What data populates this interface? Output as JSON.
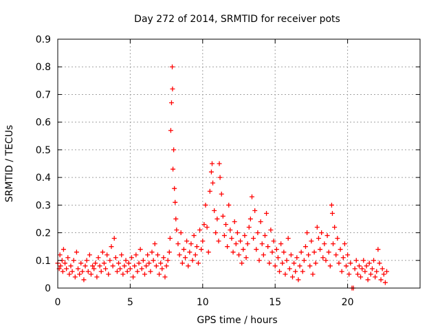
{
  "chart_data": {
    "type": "scatter",
    "title": "Day 272 of 2014, SRMTID for receiver pots",
    "xlabel": "GPS time / hours",
    "ylabel": "SRMTID / TECUs",
    "xlim": [
      0,
      25
    ],
    "ylim": [
      0,
      0.9
    ],
    "x_ticks": [
      0,
      5,
      10,
      15,
      20
    ],
    "x_tick_labels": [
      "0",
      "5",
      "10",
      "15",
      "20"
    ],
    "y_ticks": [
      0,
      0.1,
      0.2,
      0.3,
      0.4,
      0.5,
      0.6,
      0.7,
      0.8,
      0.9
    ],
    "y_tick_labels": [
      "0",
      "0.1",
      "0.2",
      "0.3",
      "0.4",
      "0.5",
      "0.6",
      "0.7",
      "0.8",
      "0.9"
    ],
    "grid": true,
    "marker": "+",
    "color": "#ff0000",
    "series": [
      {
        "name": "SRMTID",
        "points": [
          [
            0.0,
            0.09
          ],
          [
            0.1,
            0.07
          ],
          [
            0.15,
            0.12
          ],
          [
            0.2,
            0.08
          ],
          [
            0.3,
            0.1
          ],
          [
            0.35,
            0.06
          ],
          [
            0.4,
            0.14
          ],
          [
            0.5,
            0.09
          ],
          [
            0.6,
            0.07
          ],
          [
            0.7,
            0.11
          ],
          [
            0.8,
            0.05
          ],
          [
            0.9,
            0.08
          ],
          [
            1.0,
            0.06
          ],
          [
            1.1,
            0.1
          ],
          [
            1.2,
            0.04
          ],
          [
            1.3,
            0.13
          ],
          [
            1.4,
            0.07
          ],
          [
            1.5,
            0.05
          ],
          [
            1.6,
            0.09
          ],
          [
            1.7,
            0.06
          ],
          [
            1.8,
            0.03
          ],
          [
            1.9,
            0.08
          ],
          [
            2.0,
            0.1
          ],
          [
            2.1,
            0.06
          ],
          [
            2.2,
            0.12
          ],
          [
            2.3,
            0.05
          ],
          [
            2.4,
            0.08
          ],
          [
            2.5,
            0.07
          ],
          [
            2.6,
            0.09
          ],
          [
            2.7,
            0.04
          ],
          [
            2.8,
            0.11
          ],
          [
            2.9,
            0.08
          ],
          [
            3.0,
            0.06
          ],
          [
            3.1,
            0.13
          ],
          [
            3.2,
            0.09
          ],
          [
            3.3,
            0.07
          ],
          [
            3.4,
            0.12
          ],
          [
            3.5,
            0.05
          ],
          [
            3.6,
            0.1
          ],
          [
            3.7,
            0.15
          ],
          [
            3.8,
            0.08
          ],
          [
            3.9,
            0.18
          ],
          [
            4.0,
            0.11
          ],
          [
            4.1,
            0.06
          ],
          [
            4.2,
            0.09
          ],
          [
            4.3,
            0.07
          ],
          [
            4.4,
            0.12
          ],
          [
            4.5,
            0.05
          ],
          [
            4.6,
            0.08
          ],
          [
            4.7,
            0.1
          ],
          [
            4.8,
            0.06
          ],
          [
            4.9,
            0.09
          ],
          [
            5.0,
            0.07
          ],
          [
            5.1,
            0.11
          ],
          [
            5.2,
            0.04
          ],
          [
            5.3,
            0.08
          ],
          [
            5.4,
            0.12
          ],
          [
            5.5,
            0.06
          ],
          [
            5.6,
            0.09
          ],
          [
            5.7,
            0.14
          ],
          [
            5.8,
            0.07
          ],
          [
            5.9,
            0.1
          ],
          [
            6.0,
            0.05
          ],
          [
            6.1,
            0.08
          ],
          [
            6.2,
            0.12
          ],
          [
            6.3,
            0.09
          ],
          [
            6.4,
            0.06
          ],
          [
            6.5,
            0.13
          ],
          [
            6.6,
            0.1
          ],
          [
            6.7,
            0.16
          ],
          [
            6.8,
            0.08
          ],
          [
            6.9,
            0.12
          ],
          [
            7.0,
            0.05
          ],
          [
            7.1,
            0.09
          ],
          [
            7.2,
            0.07
          ],
          [
            7.3,
            0.11
          ],
          [
            7.4,
            0.04
          ],
          [
            7.5,
            0.08
          ],
          [
            7.6,
            0.1
          ],
          [
            7.7,
            0.13
          ],
          [
            7.75,
            0.18
          ],
          [
            7.8,
            0.57
          ],
          [
            7.85,
            0.67
          ],
          [
            7.9,
            0.8
          ],
          [
            7.92,
            0.72
          ],
          [
            7.95,
            0.43
          ],
          [
            8.0,
            0.5
          ],
          [
            8.05,
            0.36
          ],
          [
            8.1,
            0.31
          ],
          [
            8.15,
            0.25
          ],
          [
            8.2,
            0.21
          ],
          [
            8.3,
            0.16
          ],
          [
            8.4,
            0.12
          ],
          [
            8.5,
            0.2
          ],
          [
            8.6,
            0.09
          ],
          [
            8.7,
            0.14
          ],
          [
            8.8,
            0.11
          ],
          [
            8.9,
            0.17
          ],
          [
            9.0,
            0.08
          ],
          [
            9.1,
            0.13
          ],
          [
            9.2,
            0.16
          ],
          [
            9.3,
            0.1
          ],
          [
            9.4,
            0.19
          ],
          [
            9.5,
            0.12
          ],
          [
            9.6,
            0.15
          ],
          [
            9.7,
            0.09
          ],
          [
            9.8,
            0.21
          ],
          [
            9.9,
            0.14
          ],
          [
            10.0,
            0.17
          ],
          [
            10.1,
            0.23
          ],
          [
            10.2,
            0.3
          ],
          [
            10.3,
            0.22
          ],
          [
            10.4,
            0.13
          ],
          [
            10.5,
            0.35
          ],
          [
            10.6,
            0.42
          ],
          [
            10.65,
            0.45
          ],
          [
            10.7,
            0.38
          ],
          [
            10.8,
            0.28
          ],
          [
            10.9,
            0.2
          ],
          [
            11.0,
            0.25
          ],
          [
            11.1,
            0.17
          ],
          [
            11.15,
            0.45
          ],
          [
            11.2,
            0.4
          ],
          [
            11.3,
            0.34
          ],
          [
            11.4,
            0.26
          ],
          [
            11.5,
            0.19
          ],
          [
            11.6,
            0.23
          ],
          [
            11.7,
            0.15
          ],
          [
            11.8,
            0.3
          ],
          [
            11.9,
            0.21
          ],
          [
            12.0,
            0.18
          ],
          [
            12.1,
            0.13
          ],
          [
            12.2,
            0.24
          ],
          [
            12.3,
            0.16
          ],
          [
            12.4,
            0.2
          ],
          [
            12.5,
            0.12
          ],
          [
            12.6,
            0.17
          ],
          [
            12.7,
            0.09
          ],
          [
            12.8,
            0.14
          ],
          [
            12.9,
            0.19
          ],
          [
            13.0,
            0.11
          ],
          [
            13.1,
            0.16
          ],
          [
            13.2,
            0.22
          ],
          [
            13.3,
            0.25
          ],
          [
            13.4,
            0.33
          ],
          [
            13.5,
            0.18
          ],
          [
            13.6,
            0.28
          ],
          [
            13.7,
            0.14
          ],
          [
            13.8,
            0.2
          ],
          [
            13.9,
            0.1
          ],
          [
            14.0,
            0.24
          ],
          [
            14.1,
            0.16
          ],
          [
            14.2,
            0.12
          ],
          [
            14.3,
            0.19
          ],
          [
            14.4,
            0.27
          ],
          [
            14.5,
            0.15
          ],
          [
            14.6,
            0.09
          ],
          [
            14.7,
            0.21
          ],
          [
            14.8,
            0.13
          ],
          [
            14.9,
            0.17
          ],
          [
            15.0,
            0.08
          ],
          [
            15.1,
            0.14
          ],
          [
            15.2,
            0.11
          ],
          [
            15.3,
            0.06
          ],
          [
            15.4,
            0.16
          ],
          [
            15.5,
            0.09
          ],
          [
            15.6,
            0.13
          ],
          [
            15.7,
            0.05
          ],
          [
            15.8,
            0.1
          ],
          [
            15.9,
            0.18
          ],
          [
            16.0,
            0.07
          ],
          [
            16.1,
            0.12
          ],
          [
            16.2,
            0.04
          ],
          [
            16.3,
            0.09
          ],
          [
            16.4,
            0.06
          ],
          [
            16.5,
            0.11
          ],
          [
            16.6,
            0.03
          ],
          [
            16.7,
            0.08
          ],
          [
            16.8,
            0.13
          ],
          [
            16.9,
            0.06
          ],
          [
            17.0,
            0.1
          ],
          [
            17.1,
            0.15
          ],
          [
            17.2,
            0.2
          ],
          [
            17.3,
            0.12
          ],
          [
            17.4,
            0.08
          ],
          [
            17.5,
            0.17
          ],
          [
            17.6,
            0.05
          ],
          [
            17.7,
            0.13
          ],
          [
            17.8,
            0.09
          ],
          [
            17.9,
            0.22
          ],
          [
            18.0,
            0.18
          ],
          [
            18.1,
            0.14
          ],
          [
            18.2,
            0.2
          ],
          [
            18.3,
            0.11
          ],
          [
            18.4,
            0.16
          ],
          [
            18.5,
            0.1
          ],
          [
            18.6,
            0.19
          ],
          [
            18.7,
            0.13
          ],
          [
            18.8,
            0.08
          ],
          [
            18.9,
            0.3
          ],
          [
            18.95,
            0.27
          ],
          [
            19.0,
            0.16
          ],
          [
            19.1,
            0.22
          ],
          [
            19.2,
            0.12
          ],
          [
            19.3,
            0.18
          ],
          [
            19.4,
            0.09
          ],
          [
            19.5,
            0.14
          ],
          [
            19.6,
            0.06
          ],
          [
            19.7,
            0.11
          ],
          [
            19.8,
            0.16
          ],
          [
            19.9,
            0.08
          ],
          [
            20.0,
            0.12
          ],
          [
            20.1,
            0.05
          ],
          [
            20.2,
            0.09
          ],
          [
            20.3,
            0.0
          ],
          [
            20.4,
            0.0
          ],
          [
            20.5,
            0.07
          ],
          [
            20.6,
            0.1
          ],
          [
            20.7,
            0.05
          ],
          [
            20.8,
            0.08
          ],
          [
            20.9,
            0.04
          ],
          [
            21.0,
            0.07
          ],
          [
            21.1,
            0.1
          ],
          [
            21.2,
            0.06
          ],
          [
            21.3,
            0.08
          ],
          [
            21.4,
            0.03
          ],
          [
            21.5,
            0.09
          ],
          [
            21.6,
            0.05
          ],
          [
            21.7,
            0.07
          ],
          [
            21.8,
            0.1
          ],
          [
            21.9,
            0.04
          ],
          [
            22.0,
            0.06
          ],
          [
            22.1,
            0.14
          ],
          [
            22.2,
            0.09
          ],
          [
            22.3,
            0.03
          ],
          [
            22.4,
            0.07
          ],
          [
            22.5,
            0.05
          ],
          [
            22.6,
            0.02
          ],
          [
            22.7,
            0.06
          ]
        ]
      }
    ]
  }
}
